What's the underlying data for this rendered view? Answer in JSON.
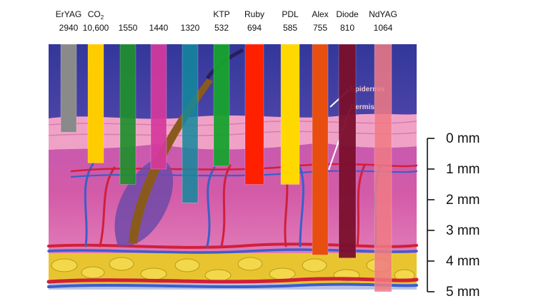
{
  "lasers": [
    {
      "name": "ErYAG",
      "wavelength": "2940",
      "color": "#8a8a8a",
      "opacity": 1.0,
      "depth_mm": -0.2
    },
    {
      "name": "CO",
      "name_sub": "2",
      "wavelength": "10,600",
      "color": "#ffcc00",
      "opacity": 1.0,
      "depth_mm": 0.8
    },
    {
      "name": "",
      "wavelength": "1550",
      "color": "#1f8f2c",
      "opacity": 0.92,
      "depth_mm": 1.5
    },
    {
      "name": "",
      "wavelength": "1440",
      "color": "#d6389c",
      "opacity": 0.92,
      "depth_mm": 1.0
    },
    {
      "name": "",
      "wavelength": "1320",
      "color": "#138a9c",
      "opacity": 0.85,
      "depth_mm": 2.1
    },
    {
      "name": "KTP",
      "wavelength": "532",
      "color": "#17a22e",
      "opacity": 0.95,
      "depth_mm": 0.9
    },
    {
      "name": "Ruby",
      "wavelength": "694",
      "color": "#ff2000",
      "opacity": 1.0,
      "depth_mm": 1.5
    },
    {
      "name": "PDL",
      "wavelength": "585",
      "color": "#ffd800",
      "opacity": 1.0,
      "depth_mm": 1.5
    },
    {
      "name": "Alex",
      "wavelength": "755",
      "color": "#e84e10",
      "opacity": 1.0,
      "depth_mm": 3.8
    },
    {
      "name": "Diode",
      "wavelength": "810",
      "color": "#7a0f2c",
      "opacity": 0.95,
      "depth_mm": 3.9
    },
    {
      "name": "NdYAG",
      "wavelength": "1064",
      "color": "#f07a84",
      "opacity": 0.85,
      "depth_mm": 5.0
    }
  ],
  "depth_scale": {
    "ticks": [
      {
        "mm": 0,
        "label": "0 mm"
      },
      {
        "mm": 1,
        "label": "1 mm"
      },
      {
        "mm": 2,
        "label": "2 mm"
      },
      {
        "mm": 3,
        "label": "3 mm"
      },
      {
        "mm": 4,
        "label": "4 mm"
      },
      {
        "mm": 5,
        "label": "5 mm"
      }
    ]
  },
  "skin_labels": {
    "epidermis": "Epidermis",
    "dermis": "Dermis"
  },
  "colors": {
    "dermis": "#d24fa8",
    "epidermis": "#f3a3c7",
    "upper_bg": "#3a3fa4",
    "fat": "#e5c42c",
    "artery": "#d0203a",
    "vein": "#3b5fc8",
    "hair": "#8a5a1c"
  }
}
